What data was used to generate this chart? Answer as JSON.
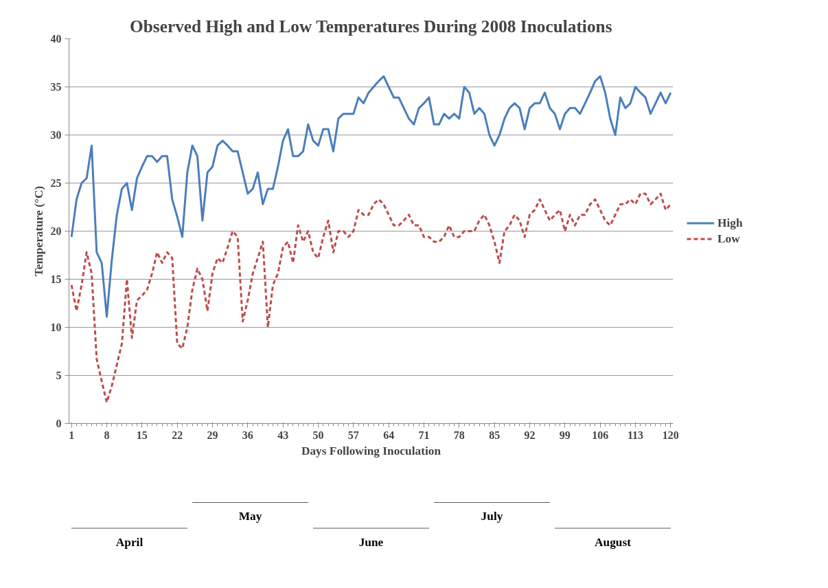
{
  "chart_data": {
    "type": "line",
    "title": "Observed High and Low Temperatures During 2008 Inoculations",
    "xlabel": "Days Following Inoculation",
    "ylabel": "Temperature (°C)",
    "x": [
      1,
      2,
      3,
      4,
      5,
      6,
      7,
      8,
      9,
      10,
      11,
      12,
      13,
      14,
      15,
      16,
      17,
      18,
      19,
      20,
      21,
      22,
      23,
      24,
      25,
      26,
      27,
      28,
      29,
      30,
      31,
      32,
      33,
      34,
      35,
      36,
      37,
      38,
      39,
      40,
      41,
      42,
      43,
      44,
      45,
      46,
      47,
      48,
      49,
      50,
      51,
      52,
      53,
      54,
      55,
      56,
      57,
      58,
      59,
      60,
      61,
      62,
      63,
      64,
      65,
      66,
      67,
      68,
      69,
      70,
      71,
      72,
      73,
      74,
      75,
      76,
      77,
      78,
      79,
      80,
      81,
      82,
      83,
      84,
      85,
      86,
      87,
      88,
      89,
      90,
      91,
      92,
      93,
      94,
      95,
      96,
      97,
      98,
      99,
      100,
      101,
      102,
      103,
      104,
      105,
      106,
      107,
      108,
      109,
      110,
      111,
      112,
      113,
      114,
      115,
      116,
      117,
      118,
      119,
      120
    ],
    "series": [
      {
        "name": "High",
        "color": "#4a7ebb",
        "line_style": "solid",
        "values": [
          19.4,
          23.3,
          25,
          25.5,
          28.9,
          17.8,
          16.7,
          11.1,
          17,
          21.7,
          24.4,
          25,
          22.2,
          25.5,
          26.7,
          27.8,
          27.8,
          27.2,
          27.8,
          27.8,
          23.3,
          21.5,
          19.4,
          26.1,
          28.9,
          27.8,
          21.1,
          26.1,
          26.7,
          28.9,
          29.4,
          28.9,
          28.3,
          28.3,
          26.1,
          23.9,
          24.4,
          26.1,
          22.8,
          24.4,
          24.4,
          26.7,
          29.4,
          30.6,
          27.8,
          27.8,
          28.3,
          31.1,
          29.4,
          28.9,
          30.6,
          30.6,
          28.3,
          31.7,
          32.2,
          32.2,
          32.2,
          33.9,
          33.3,
          34.4,
          35,
          35.6,
          36.1,
          35,
          33.9,
          33.9,
          32.8,
          31.7,
          31.1,
          32.8,
          33.3,
          33.9,
          31.1,
          31.1,
          32.2,
          31.7,
          32.2,
          31.7,
          35,
          34.4,
          32.2,
          32.8,
          32.2,
          30,
          28.9,
          30,
          31.7,
          32.8,
          33.3,
          32.8,
          30.6,
          32.8,
          33.3,
          33.3,
          34.4,
          32.8,
          32.2,
          30.6,
          32.2,
          32.8,
          32.8,
          32.2,
          33.3,
          34.4,
          35.6,
          36.1,
          34.4,
          31.7,
          30,
          33.9,
          32.8,
          33.3,
          35,
          34.4,
          33.9,
          32.2,
          33.3,
          34.4,
          33.3,
          34.4
        ]
      },
      {
        "name": "Low",
        "color": "#be4b48",
        "line_style": "dashed",
        "values": [
          14.4,
          11.7,
          14.4,
          17.8,
          15.6,
          6.7,
          4.4,
          2.2,
          3.9,
          6.1,
          8.3,
          15,
          8.9,
          12.8,
          13.3,
          13.9,
          15.6,
          17.8,
          16.7,
          17.8,
          17.2,
          8.3,
          7.8,
          10,
          13.9,
          16.1,
          15,
          11.7,
          15.6,
          17.2,
          16.7,
          18.3,
          20,
          19.4,
          10.6,
          12.8,
          15.6,
          17.2,
          18.9,
          10,
          14.4,
          15.6,
          18.3,
          18.9,
          16.7,
          20.6,
          18.9,
          20,
          17.8,
          17.2,
          19.4,
          21.1,
          17.8,
          20,
          20,
          19.4,
          20,
          22.2,
          21.7,
          21.7,
          22.8,
          23.3,
          22.8,
          21.7,
          20.6,
          20.6,
          21.1,
          21.7,
          20.6,
          20.6,
          19.4,
          19.4,
          18.9,
          18.9,
          19.4,
          20.6,
          19.4,
          19.4,
          20,
          20,
          20,
          21.1,
          21.7,
          20.6,
          18.9,
          16.7,
          20,
          20.6,
          21.7,
          21.1,
          19.4,
          21.7,
          22.2,
          23.3,
          22.2,
          21.1,
          21.7,
          22.2,
          20,
          21.7,
          20.6,
          21.7,
          21.7,
          22.8,
          23.3,
          22.2,
          21.1,
          20.6,
          21.7,
          22.8,
          22.8,
          23.3,
          22.8,
          23.9,
          23.9,
          22.8,
          23.3,
          23.9,
          22.2,
          22.8
        ]
      }
    ],
    "xlim": [
      0.5,
      120.5
    ],
    "xticks": [
      1,
      8,
      15,
      22,
      29,
      36,
      43,
      50,
      57,
      64,
      71,
      78,
      85,
      92,
      99,
      106,
      113,
      120
    ],
    "ylim": [
      0,
      40
    ],
    "yticks": [
      0,
      5,
      10,
      15,
      20,
      25,
      30,
      35,
      40
    ],
    "grid": "y",
    "legend": "right",
    "marker": "none",
    "annotations": [
      "April",
      "May",
      "June",
      "July",
      "August"
    ]
  }
}
